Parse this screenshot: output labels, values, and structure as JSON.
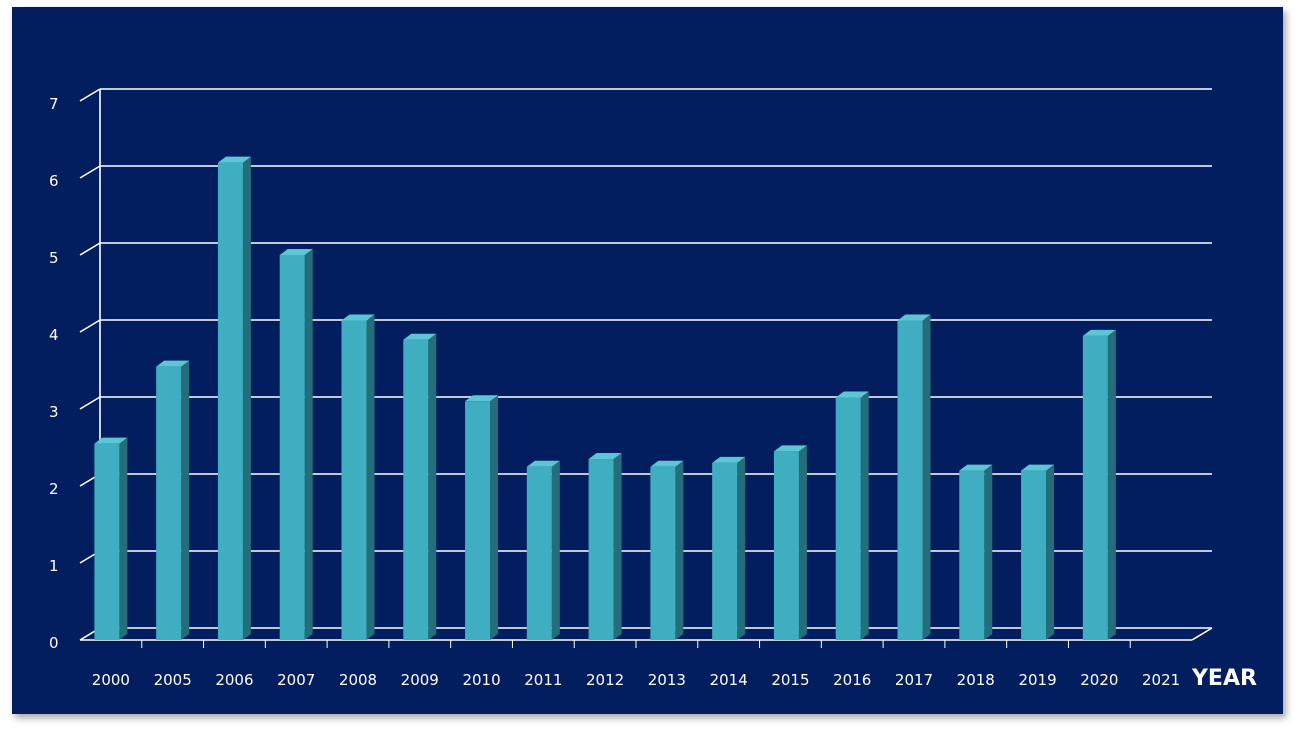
{
  "chart_data": {
    "type": "bar",
    "title": "",
    "xlabel": "YEAR",
    "ylabel": "",
    "categories": [
      "2000",
      "2005",
      "2006",
      "2007",
      "2008",
      "2009",
      "2010",
      "2011",
      "2012",
      "2013",
      "2014",
      "2015",
      "2016",
      "2017",
      "2018",
      "2019",
      "2020",
      "2021"
    ],
    "values": [
      2.55,
      3.55,
      6.2,
      5.0,
      4.15,
      3.9,
      3.1,
      2.25,
      2.35,
      2.25,
      2.3,
      2.45,
      3.15,
      4.15,
      2.2,
      2.2,
      3.95,
      null
    ],
    "yticks": [
      "0",
      "1",
      "2",
      "3",
      "4",
      "5",
      "6",
      "7"
    ],
    "ylim": [
      0,
      7
    ],
    "grid": true,
    "legend": "none",
    "colors": {
      "background": "#021e5e",
      "bar_front": "#3eaec0",
      "bar_side": "#236e7a",
      "bar_top": "#5cc6d5",
      "grid": "#ffffff"
    }
  }
}
